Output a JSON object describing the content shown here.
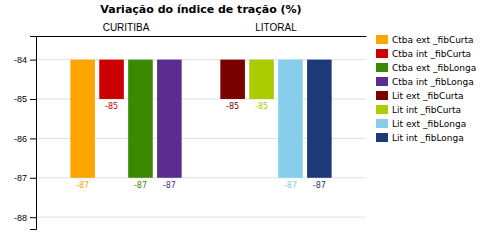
{
  "chart_data": {
    "type": "bar",
    "title": "Variação do índice de tração (%)",
    "categories": [
      "CURITIBA",
      "LITORAL"
    ],
    "series": [
      {
        "name": "Ctba ext _fibCurta",
        "color": "#FFA500",
        "values": [
          -87,
          null
        ]
      },
      {
        "name": "Ctba int _fibCurta",
        "color": "#CC0000",
        "values": [
          -85,
          null
        ]
      },
      {
        "name": "Ctba ext _fibLonga",
        "color": "#3A8A00",
        "values": [
          -87,
          null
        ]
      },
      {
        "name": "Ctba int _fibLonga",
        "color": "#5B2D8E",
        "values": [
          -87,
          null
        ]
      },
      {
        "name": "Lit ext _fibCurta",
        "color": "#7B0000",
        "values": [
          null,
          -85
        ]
      },
      {
        "name": "Lit int _fibCurta",
        "color": "#AACC00",
        "values": [
          null,
          -85
        ]
      },
      {
        "name": "Lit ext _fibLonga",
        "color": "#87CEEB",
        "values": [
          null,
          -87
        ]
      },
      {
        "name": "Lit int _fibLonga",
        "color": "#1A3A7A",
        "values": [
          null,
          -87
        ]
      }
    ],
    "ylim": [
      -88.3,
      -83.4
    ],
    "yticks": [
      -84,
      -85,
      -86,
      -87,
      -88
    ],
    "grid": true,
    "legend": "right",
    "data_labels": true
  }
}
